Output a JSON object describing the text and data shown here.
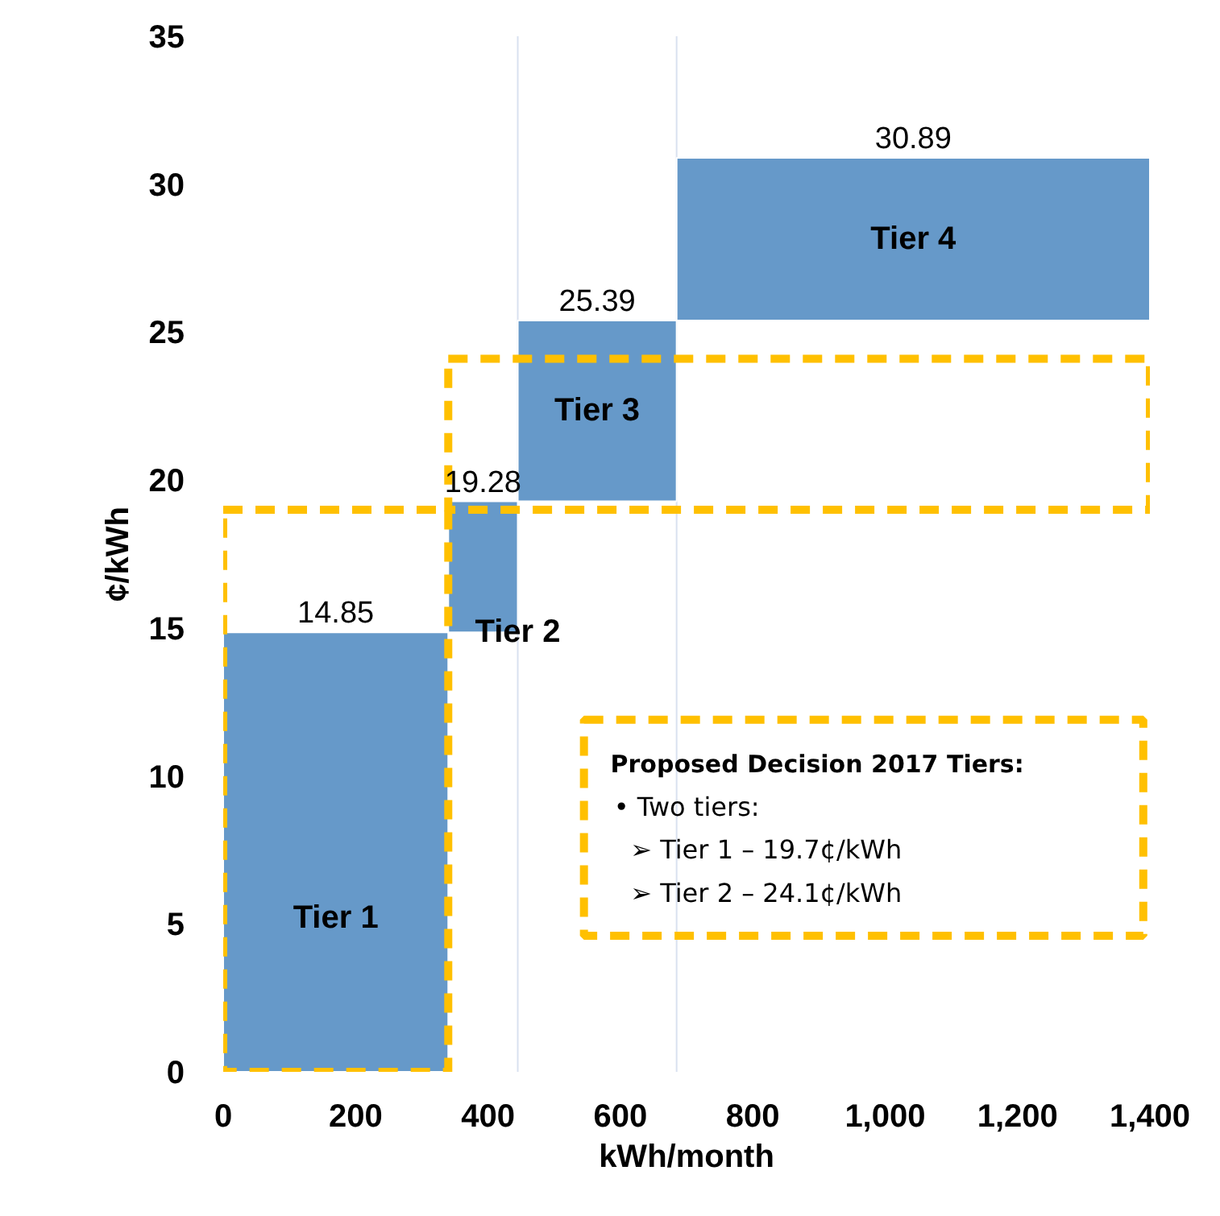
{
  "chart_data": {
    "type": "bar",
    "xlabel": "kWh/month",
    "ylabel": "¢/kWh",
    "xlim": [
      0,
      1400
    ],
    "xticks": [
      0,
      200,
      400,
      600,
      800,
      {
        "value": 1000,
        "label": "1,000"
      },
      {
        "value": 1200,
        "label": "1,200"
      },
      {
        "value": 1400,
        "label": "1,400"
      }
    ],
    "ylim": [
      0,
      35
    ],
    "yticks": [
      0,
      5,
      10,
      15,
      20,
      25,
      30,
      35
    ],
    "grid": false,
    "series": [
      {
        "x": [
          170,
          392.5,
          565,
          1042.5
        ],
        "base": [
          0,
          14.85,
          19.28,
          25.39
        ],
        "values": [
          14.85,
          4.43,
          6.11,
          5.5
        ],
        "value_labels": [
          "14.85",
          "19.28",
          "25.39",
          "30.89"
        ],
        "color": "#6699c9"
      },
      {
        "x": [
          170,
          870
        ],
        "base": [
          0,
          19
        ],
        "values": [
          19,
          5.1
        ],
        "color": "#ffc000",
        "line_style": "dashed"
      }
    ],
    "ref_lines": [
      {
        "axis": "x",
        "value": 445,
        "color": "#d9e1f0"
      },
      {
        "axis": "x",
        "value": 685,
        "color": "#d9e1f0"
      }
    ],
    "annotations": [
      "Tier 1",
      "Tier 2",
      "Tier 3",
      "Tier 4",
      "Proposed Decision 2017 Tiers:",
      "• Two tiers:",
      "➢  Tier 1 – 19.7¢/kWh",
      "➢  Tier 2 – 24.1¢/kWh"
    ]
  }
}
